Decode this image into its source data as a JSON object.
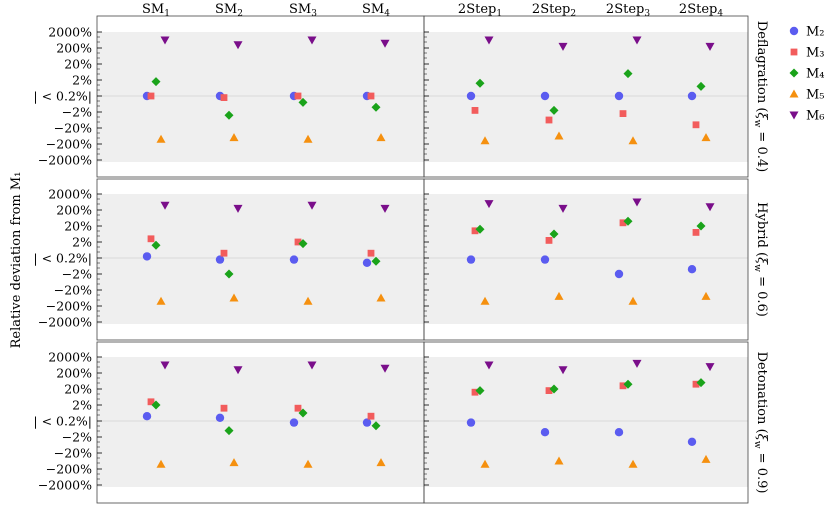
{
  "chart_data": {
    "type": "scatter",
    "title": "",
    "ylabel": "Relative deviation from M₁",
    "yticks": [
      "2000%",
      "200%",
      "20%",
      "2%",
      "| < 0.2%|",
      "−2%",
      "−20%",
      "−200%",
      "−2000%"
    ],
    "columns": [
      {
        "base": "SM",
        "sub": "1"
      },
      {
        "base": "SM",
        "sub": "2"
      },
      {
        "base": "SM",
        "sub": "3"
      },
      {
        "base": "SM",
        "sub": "4"
      },
      {
        "base": "2Step",
        "sub": "1"
      },
      {
        "base": "2Step",
        "sub": "2"
      },
      {
        "base": "2Step",
        "sub": "3"
      },
      {
        "base": "2Step",
        "sub": "4"
      }
    ],
    "rows": [
      {
        "name": "Deflagration",
        "xi": "0.4"
      },
      {
        "name": "Hybrid",
        "xi": "0.6"
      },
      {
        "name": "Detonation",
        "xi": "0.9"
      }
    ],
    "legend_position": "right",
    "series": [
      {
        "name": "M₂",
        "color": "#5b5cf0",
        "marker": "circle",
        "values": [
          [
            0,
            0,
            0,
            0,
            0,
            0,
            0,
            0
          ],
          [
            0.1,
            -0.1,
            -0.1,
            -0.3,
            -0.1,
            -0.1,
            -1.0,
            -0.7
          ],
          [
            0.3,
            0.2,
            -0.1,
            -0.1,
            -0.1,
            -0.7,
            -0.7,
            -1.3
          ]
        ]
      },
      {
        "name": "M₃",
        "color": "#f25c5c",
        "marker": "square",
        "values": [
          [
            0,
            -0.1,
            0,
            0,
            -0.9,
            -1.5,
            -1.1,
            -1.8
          ],
          [
            1.2,
            0.3,
            1.0,
            0.3,
            1.7,
            1.1,
            2.2,
            1.6
          ],
          [
            1.2,
            0.8,
            0.8,
            0.3,
            1.8,
            1.9,
            2.2,
            2.3
          ]
        ]
      },
      {
        "name": "M₄",
        "color": "#1aa31a",
        "marker": "diamond",
        "values": [
          [
            0.9,
            -1.2,
            -0.4,
            -0.7,
            0.8,
            -0.9,
            1.4,
            0.6
          ],
          [
            0.8,
            -1.0,
            0.9,
            -0.2,
            1.8,
            1.5,
            2.3,
            2.0
          ],
          [
            1.0,
            -0.6,
            0.5,
            -0.3,
            1.9,
            2.0,
            2.3,
            2.4
          ]
        ]
      },
      {
        "name": "M₅",
        "color": "#f5900f",
        "marker": "triangle-up",
        "values": [
          [
            -2.7,
            -2.6,
            -2.7,
            -2.6,
            -2.8,
            -2.5,
            -2.8,
            -2.6
          ],
          [
            -2.7,
            -2.5,
            -2.7,
            -2.5,
            -2.7,
            -2.4,
            -2.7,
            -2.4
          ],
          [
            -2.7,
            -2.6,
            -2.7,
            -2.6,
            -2.7,
            -2.5,
            -2.7,
            -2.4
          ]
        ]
      },
      {
        "name": "M₆",
        "color": "#7a0e8a",
        "marker": "triangle-down",
        "values": [
          [
            3.5,
            3.2,
            3.5,
            3.3,
            3.5,
            3.1,
            3.5,
            3.1
          ],
          [
            3.3,
            3.1,
            3.3,
            3.1,
            3.4,
            3.1,
            3.5,
            3.2
          ],
          [
            3.5,
            3.2,
            3.5,
            3.3,
            3.5,
            3.2,
            3.6,
            3.4
          ]
        ]
      }
    ]
  }
}
